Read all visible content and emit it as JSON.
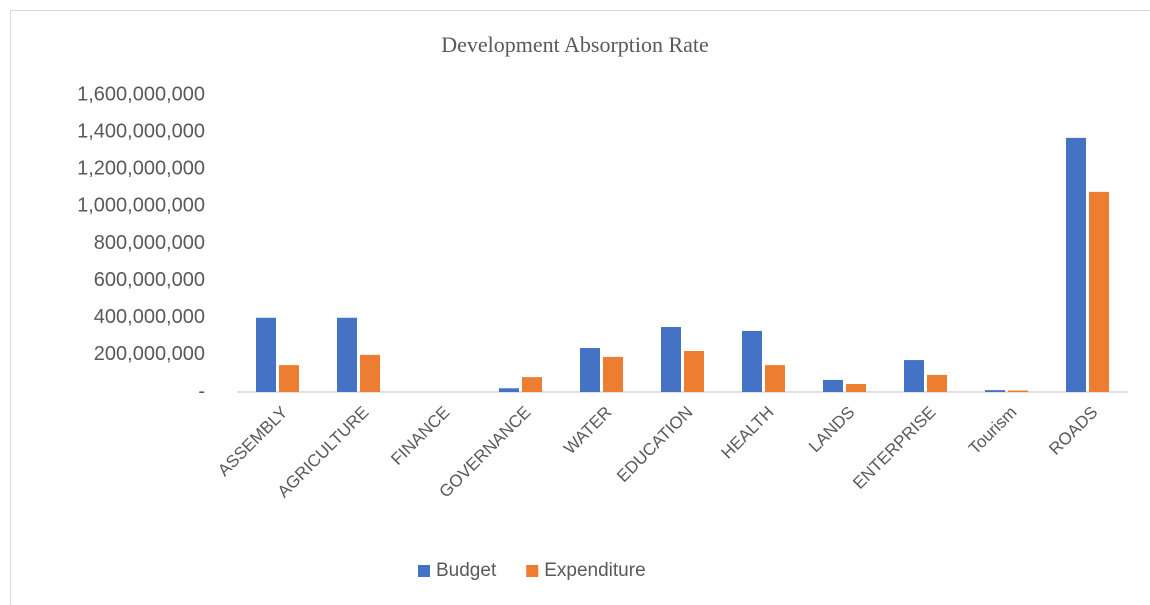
{
  "chart_data": {
    "type": "bar",
    "title": "Development Absorption Rate",
    "categories": [
      "ASSEMBLY",
      "AGRICULTURE",
      "FINANCE",
      "GOVERNANCE",
      "WATER",
      "EDUCATION",
      "HEALTH",
      "LANDS",
      "ENTERPRISE",
      "Tourism",
      "ROADS"
    ],
    "series": [
      {
        "name": "Budget",
        "color": "#4472c4",
        "values": [
          400000000,
          400000000,
          0,
          20000000,
          237000000,
          350000000,
          329000000,
          65000000,
          172000000,
          10000000,
          1369000000
        ]
      },
      {
        "name": "Expenditure",
        "color": "#ed7d31",
        "values": [
          145000000,
          200000000,
          0,
          80000000,
          189000000,
          221000000,
          145000000,
          43000000,
          92000000,
          8000000,
          1078000000
        ]
      }
    ],
    "ylim": [
      0,
      1600000000
    ],
    "yticks": [
      {
        "value": 0,
        "label": "-"
      },
      {
        "value": 200000000,
        "label": "200,000,000"
      },
      {
        "value": 400000000,
        "label": "400,000,000"
      },
      {
        "value": 600000000,
        "label": "600,000,000"
      },
      {
        "value": 800000000,
        "label": "800,000,000"
      },
      {
        "value": 1000000000,
        "label": "1,000,000,000"
      },
      {
        "value": 1200000000,
        "label": "1,200,000,000"
      },
      {
        "value": 1400000000,
        "label": "1,400,000,000"
      },
      {
        "value": 1600000000,
        "label": "1,600,000,000"
      }
    ],
    "grid": false,
    "legend": "bottom"
  }
}
